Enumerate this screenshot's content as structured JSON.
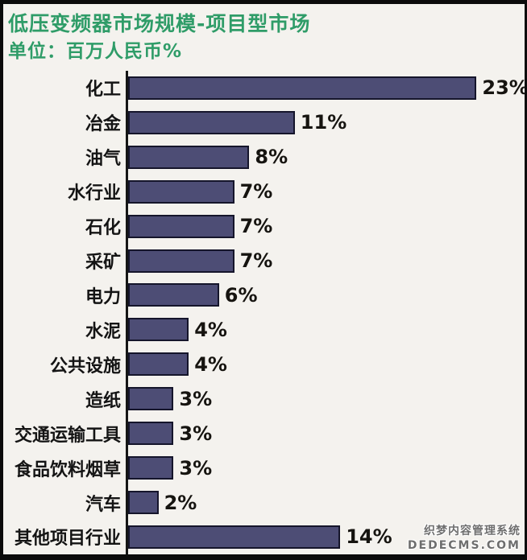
{
  "header": {
    "title": "低压变频器市场规模-项目型市场",
    "subtitle": "单位：百万人民币%"
  },
  "chart_data": {
    "type": "bar",
    "orientation": "horizontal",
    "title": "低压变频器市场规模-项目型市场",
    "xlabel": "",
    "ylabel": "",
    "unit": "百万人民币%",
    "categories": [
      "化工",
      "冶金",
      "油气",
      "水行业",
      "石化",
      "采矿",
      "电力",
      "水泥",
      "公共设施",
      "造纸",
      "交通运输工具",
      "食品饮料烟草",
      "汽车",
      "其他项目行业"
    ],
    "values": [
      23,
      11,
      8,
      7,
      7,
      7,
      6,
      4,
      4,
      3,
      3,
      3,
      2,
      14
    ],
    "value_labels": [
      "23%",
      "11%",
      "8%",
      "7%",
      "7%",
      "7%",
      "6%",
      "4%",
      "4%",
      "3%",
      "3%",
      "3%",
      "2%",
      "14%"
    ],
    "xlim": [
      0,
      26
    ],
    "grid": false,
    "legend": false,
    "bar_color": "#4d4d75",
    "bar_border_color": "#15152b",
    "axis_color": "#151515",
    "title_color": "#2f9c68",
    "label_color": "#141414"
  },
  "watermark": {
    "line1": "织梦内容管理系统",
    "line2": "DEDECMS.COM"
  }
}
